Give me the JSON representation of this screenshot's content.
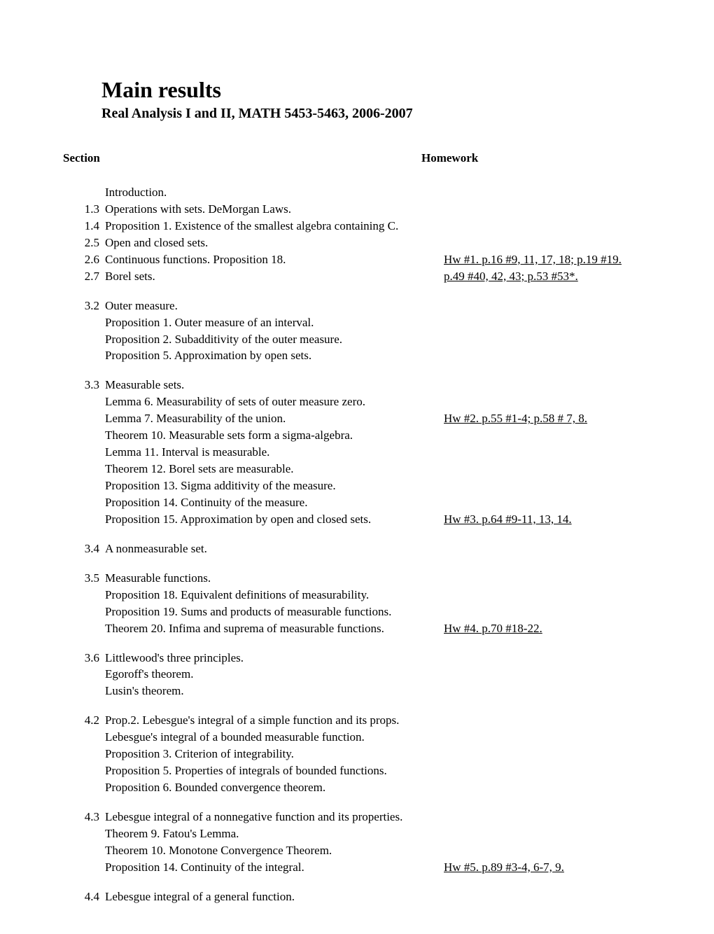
{
  "title": "Main results",
  "subtitle": "Real Analysis I and II, MATH 5453-5463, 2006-2007",
  "headers": {
    "section": "Section",
    "homework": "Homework"
  },
  "rows": [
    {
      "sec": "",
      "topic": "Introduction.",
      "hw": "",
      "hw_link": false
    },
    {
      "sec": "1.3",
      "topic": "Operations with sets. DeMorgan Laws.",
      "hw": "",
      "hw_link": false
    },
    {
      "sec": "1.4",
      "topic": "Proposition 1. Existence of the smallest algebra containing C.",
      "hw": "",
      "hw_link": false
    },
    {
      "sec": "2.5",
      "topic": "Open and closed sets.",
      "hw": "",
      "hw_link": false
    },
    {
      "sec": "2.6",
      "topic": "Continuous functions. Proposition 18.",
      "hw": "Hw #1. p.16 #9, 11, 17, 18; p.19 #19.",
      "hw_link": true
    },
    {
      "sec": "2.7",
      "topic": "Borel sets.",
      "hw": "p.49 #40, 42, 43; p.53 #53*.",
      "hw_link": true
    },
    {
      "spacer": true
    },
    {
      "sec": "3.2",
      "topic": "Outer measure.",
      "hw": "",
      "hw_link": false
    },
    {
      "sec": "",
      "topic": "Proposition 1. Outer measure of an interval.",
      "hw": "",
      "hw_link": false
    },
    {
      "sec": "",
      "topic": "Proposition 2. Subadditivity of the outer measure.",
      "hw": "",
      "hw_link": false
    },
    {
      "sec": "",
      "topic": "Proposition 5. Approximation by open sets.",
      "hw": "",
      "hw_link": false
    },
    {
      "spacer": true
    },
    {
      "sec": "3.3",
      "topic": "Measurable sets.",
      "hw": "",
      "hw_link": false
    },
    {
      "sec": "",
      "topic": "Lemma 6. Measurability of sets of outer measure zero.",
      "hw": "",
      "hw_link": false
    },
    {
      "sec": "",
      "topic": "Lemma 7. Measurability of the union.",
      "hw": "Hw #2. p.55 #1-4; p.58 # 7, 8.",
      "hw_link": true
    },
    {
      "sec": "",
      "topic": "Theorem 10. Measurable sets form a sigma-algebra.",
      "hw": "",
      "hw_link": false
    },
    {
      "sec": "",
      "topic": "Lemma 11. Interval is measurable.",
      "hw": "",
      "hw_link": false
    },
    {
      "sec": "",
      "topic": "Theorem 12. Borel sets are measurable.",
      "hw": "",
      "hw_link": false
    },
    {
      "sec": "",
      "topic": "Proposition 13. Sigma additivity of the measure.",
      "hw": "",
      "hw_link": false
    },
    {
      "sec": "",
      "topic": "Proposition 14. Continuity of the measure.",
      "hw": "",
      "hw_link": false
    },
    {
      "sec": "",
      "topic": "Proposition 15. Approximation by open and closed sets.",
      "hw": "Hw #3. p.64 #9-11, 13, 14.",
      "hw_link": true
    },
    {
      "spacer": true
    },
    {
      "sec": "3.4",
      "topic": "A nonmeasurable set.",
      "hw": "",
      "hw_link": false
    },
    {
      "spacer": true
    },
    {
      "sec": "3.5",
      "topic": "Measurable functions.",
      "hw": "",
      "hw_link": false
    },
    {
      "sec": "",
      "topic": "Proposition 18. Equivalent definitions of measurability.",
      "hw": "",
      "hw_link": false
    },
    {
      "sec": "",
      "topic": "Proposition 19. Sums and products of measurable functions.",
      "hw": "",
      "hw_link": false
    },
    {
      "sec": "",
      "topic": "Theorem 20. Infima and suprema of measurable functions.",
      "hw": "Hw #4. p.70 #18-22.",
      "hw_link": true
    },
    {
      "spacer": true
    },
    {
      "sec": "3.6",
      "topic": "Littlewood's three principles.",
      "hw": "",
      "hw_link": false
    },
    {
      "sec": "",
      "topic": "Egoroff's theorem.",
      "hw": "",
      "hw_link": false
    },
    {
      "sec": "",
      "topic": "Lusin's theorem.",
      "hw": "",
      "hw_link": false
    },
    {
      "spacer": true
    },
    {
      "sec": "4.2",
      "topic": "Prop.2. Lebesgue's integral of a simple function and its props.",
      "hw": "",
      "hw_link": false
    },
    {
      "sec": "",
      "topic": "Lebesgue's integral of a bounded measurable function.",
      "hw": "",
      "hw_link": false
    },
    {
      "sec": "",
      "topic": "Proposition 3. Criterion of integrability.",
      "hw": "",
      "hw_link": false
    },
    {
      "sec": "",
      "topic": "Proposition 5. Properties of integrals of bounded functions.",
      "hw": "",
      "hw_link": false
    },
    {
      "sec": "",
      "topic": "Proposition 6. Bounded convergence theorem.",
      "hw": "",
      "hw_link": false
    },
    {
      "spacer": true
    },
    {
      "sec": "4.3",
      "topic": "Lebesgue integral of a nonnegative function and its properties.",
      "hw": "",
      "hw_link": false
    },
    {
      "sec": "",
      "topic": "Theorem 9. Fatou's Lemma.",
      "hw": "",
      "hw_link": false
    },
    {
      "sec": "",
      "topic": "Theorem 10. Monotone Convergence Theorem.",
      "hw": "",
      "hw_link": false
    },
    {
      "sec": "",
      "topic": "Proposition 14. Continuity of the integral.",
      "hw": "Hw #5. p.89 #3-4, 6-7, 9.",
      "hw_link": true
    },
    {
      "spacer": true
    },
    {
      "sec": "4.4",
      "topic": "Lebesgue integral of a general function.",
      "hw": "",
      "hw_link": false
    }
  ]
}
